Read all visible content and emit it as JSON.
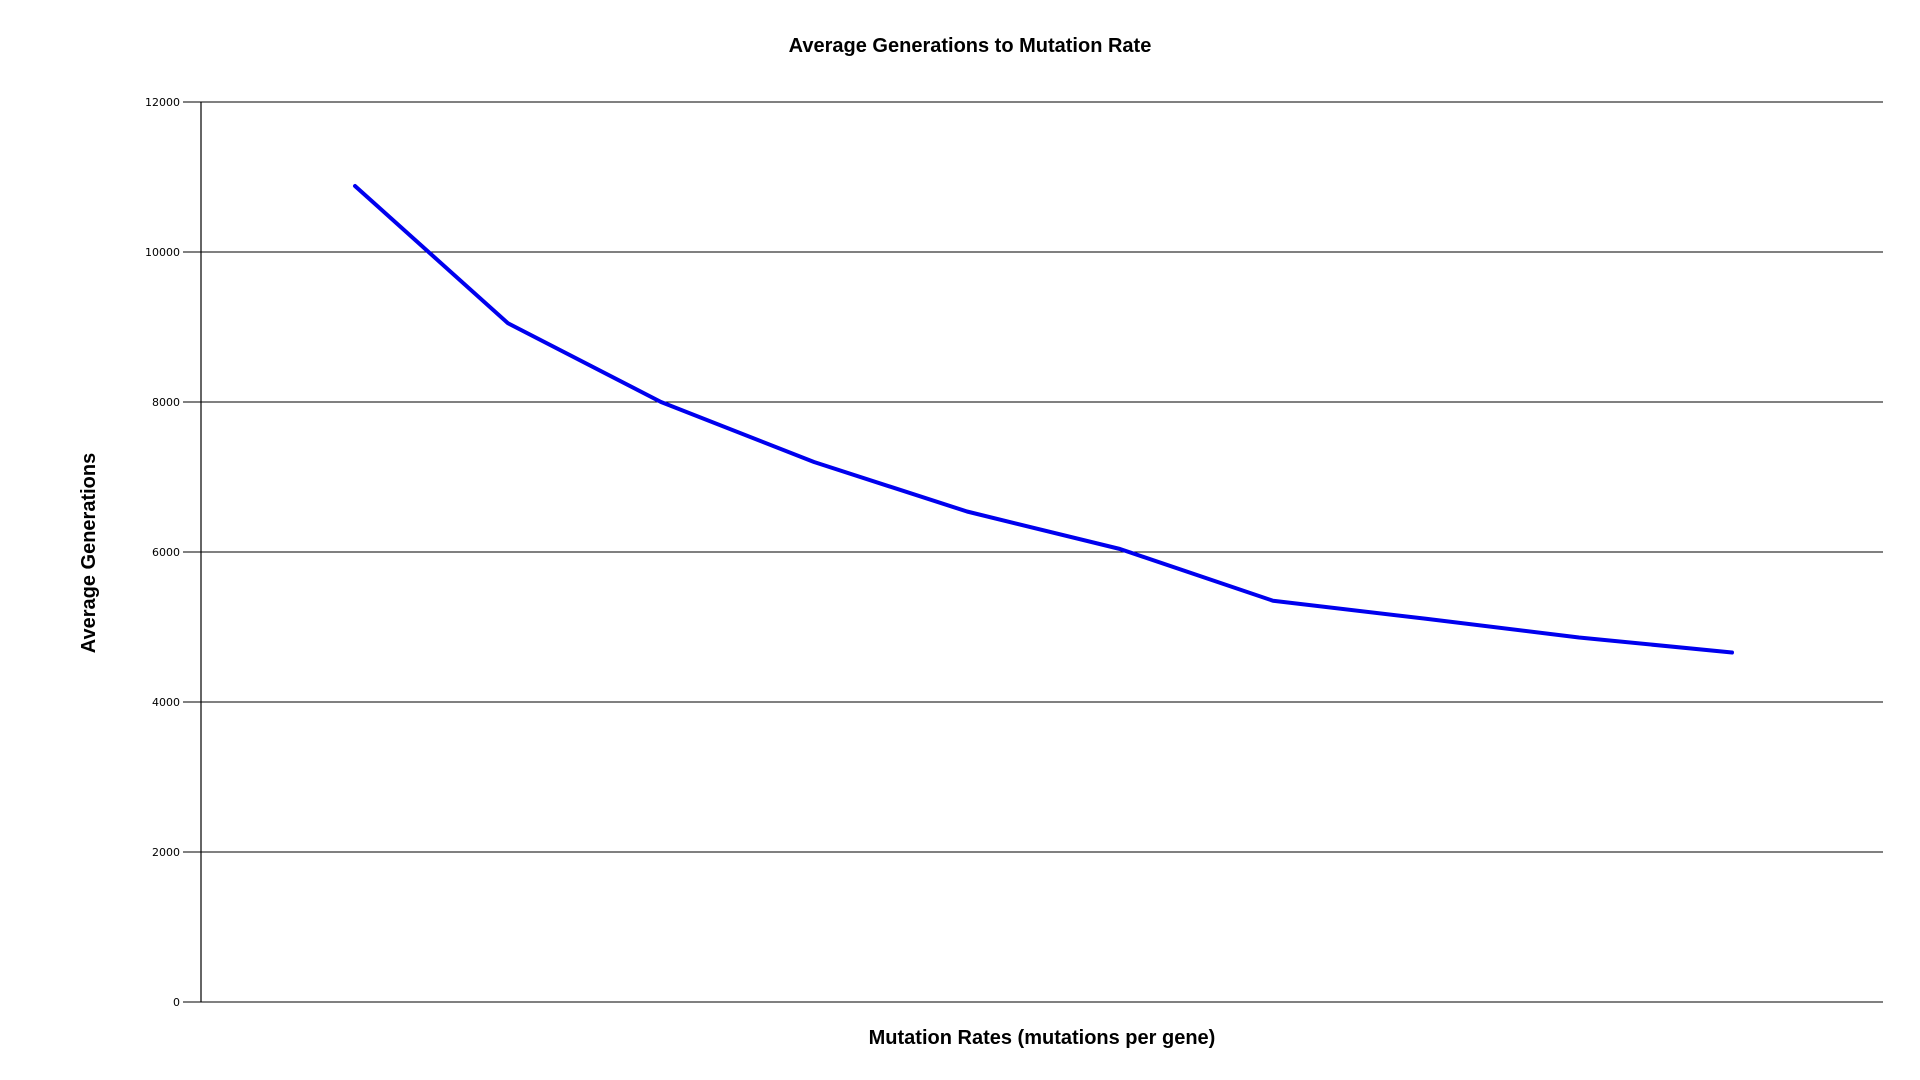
{
  "chart_data": {
    "type": "line",
    "title": "Average Generations to Mutation Rate",
    "xlabel": "Mutation Rates (mutations per gene)",
    "ylabel": "Average Generations",
    "ylim": [
      0,
      12000
    ],
    "yticks": [
      0,
      2000,
      4000,
      6000,
      8000,
      10000,
      12000
    ],
    "ytick_labels": [
      "0",
      "2000",
      "4000",
      "6000",
      "8000",
      "10000",
      "12000"
    ],
    "categories": [
      "",
      "",
      "",
      "",
      "",
      "",
      "",
      "",
      "",
      ""
    ],
    "series": [
      {
        "color": "#0000ee",
        "values": [
          10880,
          9050,
          8000,
          7200,
          6540,
          6040,
          5350,
          5110,
          4860,
          4660
        ]
      }
    ],
    "grid": true,
    "legend": "none"
  }
}
